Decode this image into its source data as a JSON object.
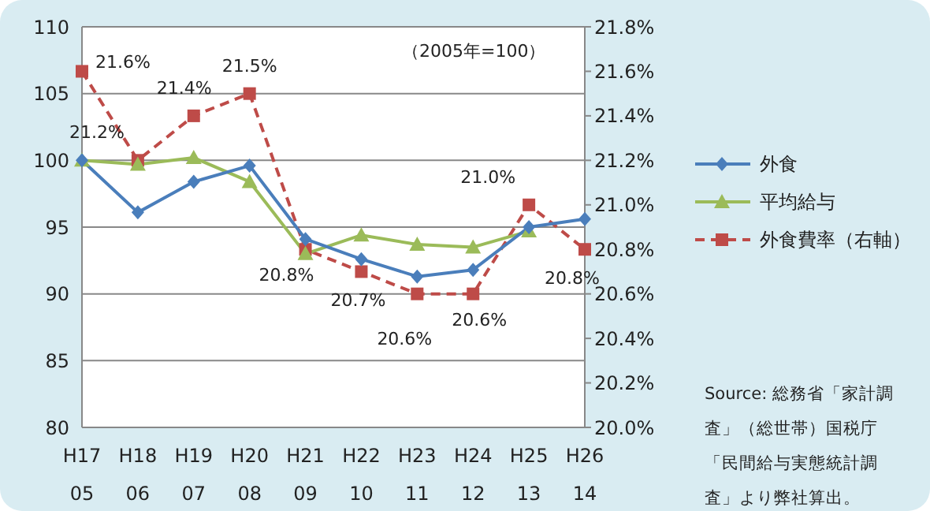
{
  "chart_data": {
    "type": "line",
    "categories": [
      "H17\n05",
      "H18\n06",
      "H19\n07",
      "H20\n08",
      "H21\n09",
      "H22\n10",
      "H23\n11",
      "H24\n12",
      "H25\n13",
      "H26\n14"
    ],
    "series": [
      {
        "name": "外食",
        "color": "#4a7ebb",
        "marker": "diamond",
        "line_style": "solid",
        "values": [
          100,
          96.1,
          98.4,
          99.6,
          94.1,
          92.6,
          91.3,
          91.8,
          95.0,
          95.6
        ]
      },
      {
        "name": "平均給与",
        "color": "#9bbb59",
        "marker": "triangle",
        "line_style": "solid",
        "values": [
          100,
          99.7,
          100.2,
          98.4,
          93.0,
          94.4,
          93.7,
          93.5,
          94.7,
          null
        ]
      },
      {
        "name": "外食費率（右軸）",
        "color": "#be4b48",
        "marker": "square",
        "line_style": "dashed",
        "axis": "y2",
        "values": [
          21.6,
          21.2,
          21.4,
          21.5,
          20.8,
          20.7,
          20.6,
          20.6,
          21.0,
          20.8
        ],
        "value_labels": [
          "21.6%",
          "21.2%",
          "21.4%",
          "21.5%",
          "20.8%",
          "20.7%",
          "20.6%",
          "20.6%",
          "21.0%",
          "20.8%"
        ]
      }
    ],
    "ylim": [
      80,
      110
    ],
    "yticks": [
      80,
      85,
      90,
      95,
      100,
      105,
      110
    ],
    "y2lim": [
      20.0,
      21.8
    ],
    "y2ticks": [
      {
        "value": 20.0,
        "label": "20.0%"
      },
      {
        "value": 20.2,
        "label": "20.2%"
      },
      {
        "value": 20.4,
        "label": "20.4%"
      },
      {
        "value": 20.6,
        "label": "20.6%"
      },
      {
        "value": 20.8,
        "label": "20.8%"
      },
      {
        "value": 21.0,
        "label": "21.0%"
      },
      {
        "value": 21.2,
        "label": "21.2%"
      },
      {
        "value": 21.4,
        "label": "21.4%"
      },
      {
        "value": 21.6,
        "label": "21.6%"
      },
      {
        "value": 21.8,
        "label": "21.8%"
      }
    ],
    "grid": "y",
    "legend": "right",
    "annotations": [
      "（2005年=100）",
      "Source: 総務省「家計調査」（総世帯）国税庁「民間給与実態統計調査」より弊社算出。"
    ]
  }
}
